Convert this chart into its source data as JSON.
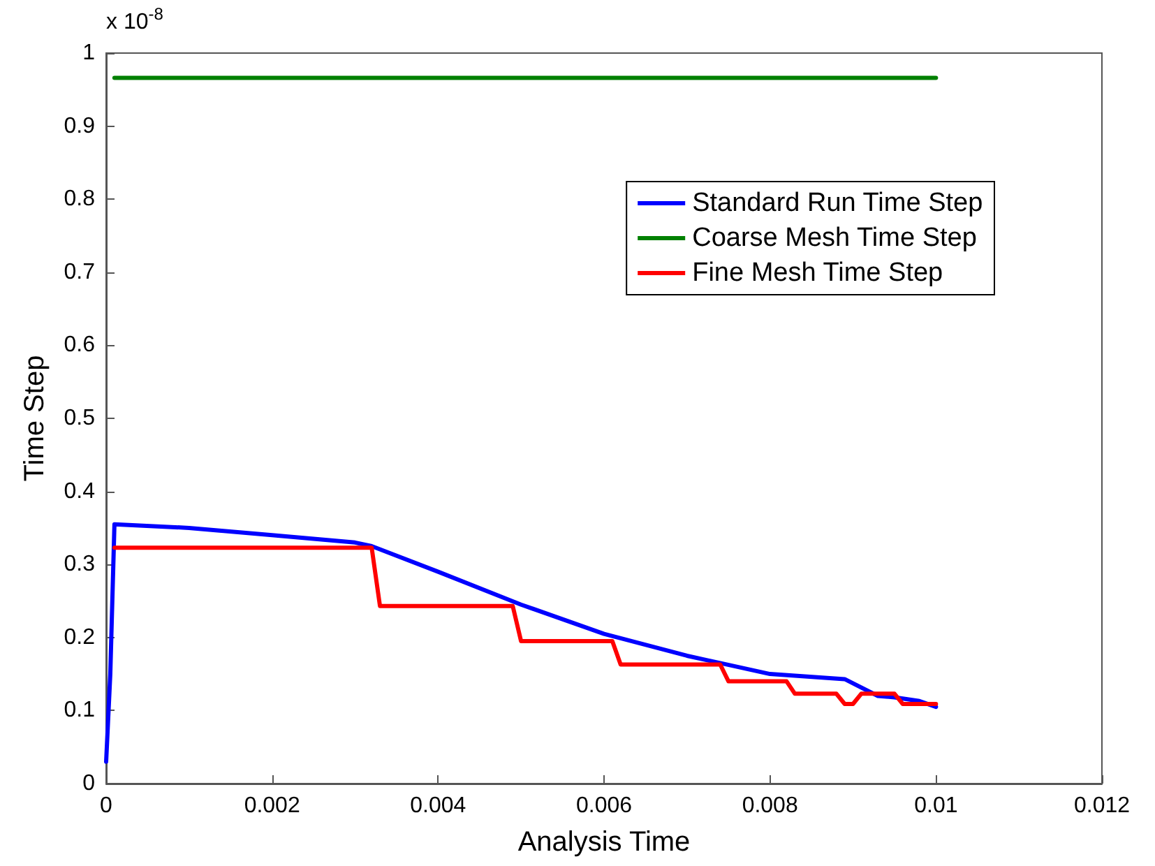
{
  "chart_data": {
    "type": "line",
    "xlabel": "Analysis Time",
    "ylabel": "Time Step",
    "annotations": [
      "x 10$^{-8}$"
    ],
    "xlim": [
      0,
      0.012
    ],
    "xticks": [
      0,
      0.002,
      0.004,
      0.006,
      0.008,
      0.01,
      0.012
    ],
    "ylim": [
      0,
      1
    ],
    "yticks": [
      0,
      0.1,
      0.2,
      0.3,
      0.4,
      0.5,
      0.6,
      0.7,
      0.8,
      0.9,
      1
    ],
    "grid": false,
    "legend": "top right",
    "marker": "none",
    "line_style": "solid",
    "series": [
      {
        "name": "Standard Run Time Step",
        "color": "#0000ff",
        "x": [
          0,
          5e-05,
          0.0001,
          0.001,
          0.002,
          0.003,
          0.0032,
          0.004,
          0.005,
          0.006,
          0.007,
          0.008,
          0.0089,
          0.0093,
          0.0095,
          0.0098,
          0.01
        ],
        "values": [
          0.03,
          0.15,
          0.355,
          0.35,
          0.34,
          0.33,
          0.325,
          0.29,
          0.245,
          0.205,
          0.175,
          0.15,
          0.143,
          0.12,
          0.118,
          0.113,
          0.105
        ]
      },
      {
        "name": "Coarse Mesh Time Step",
        "color": "#008000",
        "x": [
          0.0001,
          0.01
        ],
        "values": [
          0.966,
          0.966
        ]
      },
      {
        "name": "Fine Mesh Time Step",
        "color": "#ff0000",
        "x": [
          0.0001,
          0.0032,
          0.0033,
          0.0049,
          0.005,
          0.0061,
          0.0062,
          0.0074,
          0.0075,
          0.0082,
          0.0083,
          0.0088,
          0.0089,
          0.009,
          0.0091,
          0.0095,
          0.0096,
          0.01
        ],
        "values": [
          0.323,
          0.323,
          0.243,
          0.243,
          0.195,
          0.195,
          0.163,
          0.163,
          0.14,
          0.14,
          0.123,
          0.123,
          0.109,
          0.109,
          0.123,
          0.123,
          0.109,
          0.109
        ]
      }
    ]
  }
}
